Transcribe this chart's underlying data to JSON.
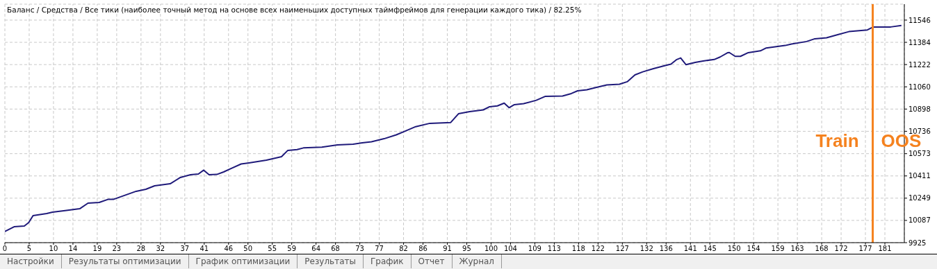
{
  "chart_data": {
    "type": "line",
    "title": "Баланс / Средства / Все тики (наиболее точный метод на основе всех наименьших доступных таймфреймов для генерации каждого тика) / 82.25%",
    "series": [
      {
        "color": "#1f1a7a",
        "x": [
          0,
          1.9,
          4,
          4.9,
          5.8,
          8.6,
          9.8,
          12.4,
          15.4,
          17.1,
          19.4,
          21.3,
          22.4,
          27,
          29,
          30.8,
          34,
          36.1,
          38.2,
          39.8,
          40.9,
          42,
          43.6,
          45,
          46.5,
          48.6,
          50.2,
          53.8,
          56.9,
          58.2,
          60.1,
          61.4,
          65.2,
          68.4,
          71.6,
          73.5,
          75.4,
          78,
          80.5,
          82.5,
          84.5,
          87.4,
          91.7,
          93.3,
          95.6,
          98.4,
          99.7,
          101.3,
          102.7,
          103.7,
          104.8,
          106.7,
          109.3,
          111.1,
          114.7,
          116.5,
          117.8,
          119.7,
          121.7,
          123.8,
          126.4,
          128,
          129.6,
          131.2,
          133.4,
          135.7,
          137,
          138.2,
          139,
          140.1,
          142,
          143.6,
          145.9,
          147.1,
          148.7,
          149,
          150.2,
          151.3,
          152.9,
          155.4,
          156.6,
          160.5,
          161.8,
          164.9,
          166.6,
          169,
          171.3,
          173.6,
          177.4,
          178.6,
          182.2,
          184.4
        ],
        "values": [
          10006,
          10041,
          10046,
          10071,
          10122,
          10137,
          10147,
          10159,
          10172,
          10213,
          10218,
          10241,
          10241,
          10299,
          10314,
          10339,
          10354,
          10400,
          10420,
          10425,
          10453,
          10420,
          10422,
          10440,
          10465,
          10498,
          10506,
          10526,
          10551,
          10597,
          10603,
          10615,
          10620,
          10637,
          10642,
          10652,
          10660,
          10682,
          10710,
          10740,
          10770,
          10794,
          10800,
          10864,
          10879,
          10892,
          10915,
          10921,
          10941,
          10908,
          10930,
          10937,
          10962,
          10990,
          10993,
          11011,
          11031,
          11038,
          11056,
          11074,
          11079,
          11097,
          11147,
          11169,
          11192,
          11214,
          11225,
          11259,
          11270,
          11221,
          11238,
          11248,
          11259,
          11277,
          11309,
          11310,
          11282,
          11282,
          11309,
          11322,
          11343,
          11361,
          11372,
          11390,
          11410,
          11417,
          11440,
          11462,
          11474,
          11496,
          11496,
          11507
        ]
      }
    ],
    "xlim": [
      0,
      185
    ],
    "xticks": [
      0,
      5,
      10,
      14,
      19,
      23,
      28,
      32,
      37,
      41,
      46,
      50,
      55,
      59,
      64,
      68,
      73,
      77,
      82,
      86,
      91,
      95,
      100,
      104,
      109,
      113,
      118,
      122,
      127,
      132,
      136,
      141,
      145,
      150,
      154,
      159,
      163,
      168,
      172,
      177,
      181
    ],
    "ylim": [
      9925,
      11662
    ],
    "yticks": [
      9925,
      10087,
      10249,
      10411,
      10573,
      10736,
      10898,
      11060,
      11222,
      11384,
      11546
    ],
    "grid": true,
    "marker": "none",
    "line_style": "solid",
    "ref_lines": [
      {
        "axis": "x",
        "value": 178.5,
        "color": "#f5821f",
        "line_style": "solid"
      }
    ],
    "annotations": [
      "Train",
      "OOS",
      "Настройки",
      "Результаты оптимизации",
      "График оптимизации",
      "Результаты",
      "График",
      "Отчет",
      "Журнал"
    ]
  }
}
